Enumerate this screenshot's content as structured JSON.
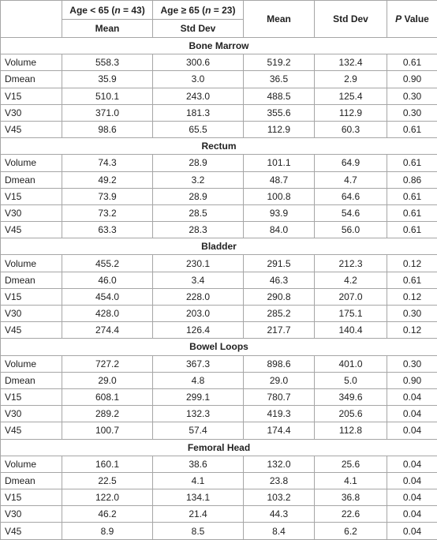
{
  "header": {
    "group1": {
      "pre": "Age < 65 (",
      "n": "n",
      "post": " = 43)",
      "sub": "Mean"
    },
    "group2": {
      "pre": "Age ≥ 65 (",
      "n": "n",
      "post": " = 23)",
      "sub": "Std Dev"
    },
    "mean": "Mean",
    "std_dev": "Std Dev",
    "p_value": {
      "p": "P",
      "rest": " Value"
    }
  },
  "sections": [
    {
      "title": "Bone Marrow",
      "rows": [
        [
          "Volume",
          "558.3",
          "300.6",
          "519.2",
          "132.4",
          "0.61"
        ],
        [
          "Dmean",
          "35.9",
          "3.0",
          "36.5",
          "2.9",
          "0.90"
        ],
        [
          "V15",
          "510.1",
          "243.0",
          "488.5",
          "125.4",
          "0.30"
        ],
        [
          "V30",
          "371.0",
          "181.3",
          "355.6",
          "112.9",
          "0.30"
        ],
        [
          "V45",
          "98.6",
          "65.5",
          "112.9",
          "60.3",
          "0.61"
        ]
      ]
    },
    {
      "title": "Rectum",
      "rows": [
        [
          "Volume",
          "74.3",
          "28.9",
          "101.1",
          "64.9",
          "0.61"
        ],
        [
          "Dmean",
          "49.2",
          "3.2",
          "48.7",
          "4.7",
          "0.86"
        ],
        [
          "V15",
          "73.9",
          "28.9",
          "100.8",
          "64.6",
          "0.61"
        ],
        [
          "V30",
          "73.2",
          "28.5",
          "93.9",
          "54.6",
          "0.61"
        ],
        [
          "V45",
          "63.3",
          "28.3",
          "84.0",
          "56.0",
          "0.61"
        ]
      ]
    },
    {
      "title": "Bladder",
      "rows": [
        [
          "Volume",
          "455.2",
          "230.1",
          "291.5",
          "212.3",
          "0.12"
        ],
        [
          "Dmean",
          "46.0",
          "3.4",
          "46.3",
          "4.2",
          "0.61"
        ],
        [
          "V15",
          "454.0",
          "228.0",
          "290.8",
          "207.0",
          "0.12"
        ],
        [
          "V30",
          "428.0",
          "203.0",
          "285.2",
          "175.1",
          "0.30"
        ],
        [
          "V45",
          "274.4",
          "126.4",
          "217.7",
          "140.4",
          "0.12"
        ]
      ]
    },
    {
      "title": "Bowel Loops",
      "rows": [
        [
          "Volume",
          "727.2",
          "367.3",
          "898.6",
          "401.0",
          "0.30"
        ],
        [
          "Dmean",
          "29.0",
          "4.8",
          "29.0",
          "5.0",
          "0.90"
        ],
        [
          "V15",
          "608.1",
          "299.1",
          "780.7",
          "349.6",
          "0.04"
        ],
        [
          "V30",
          "289.2",
          "132.3",
          "419.3",
          "205.6",
          "0.04"
        ],
        [
          "V45",
          "100.7",
          "57.4",
          "174.4",
          "112.8",
          "0.04"
        ]
      ]
    },
    {
      "title": "Femoral Head",
      "rows": [
        [
          "Volume",
          "160.1",
          "38.6",
          "132.0",
          "25.6",
          "0.04"
        ],
        [
          "Dmean",
          "22.5",
          "4.1",
          "23.8",
          "4.1",
          "0.04"
        ],
        [
          "V15",
          "122.0",
          "134.1",
          "103.2",
          "36.8",
          "0.04"
        ],
        [
          "V30",
          "46.2",
          "21.4",
          "44.3",
          "22.6",
          "0.04"
        ],
        [
          "V45",
          "8.9",
          "8.5",
          "8.4",
          "6.2",
          "0.04"
        ]
      ]
    }
  ]
}
